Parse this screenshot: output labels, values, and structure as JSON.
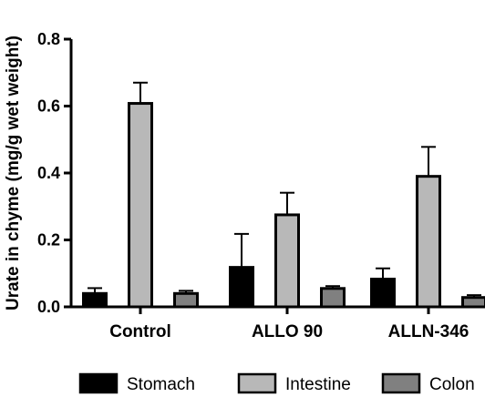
{
  "chart_data": {
    "type": "bar",
    "title": "",
    "xlabel": "",
    "ylabel": "Urate in chyme (mg/g wet weight)",
    "ylim": [
      0,
      0.8
    ],
    "yticks": [
      "0.0",
      "0.2",
      "0.4",
      "0.6",
      "0.8"
    ],
    "grid": false,
    "legend_position": "bottom",
    "categories": [
      "Control",
      "ALLO 90",
      "ALLN-346"
    ],
    "series": [
      {
        "name": "Stomach",
        "color": "#000000",
        "values": [
          0.04,
          0.118,
          0.083
        ],
        "errors": [
          0.016,
          0.1,
          0.032
        ]
      },
      {
        "name": "Intestine",
        "color": "#b8b8b8",
        "values": [
          0.608,
          0.275,
          0.39
        ],
        "errors": [
          0.062,
          0.066,
          0.088
        ]
      },
      {
        "name": "Colon",
        "color": "#808080",
        "values": [
          0.04,
          0.055,
          0.028
        ],
        "errors": [
          0.008,
          0.007,
          0.007
        ]
      }
    ]
  }
}
